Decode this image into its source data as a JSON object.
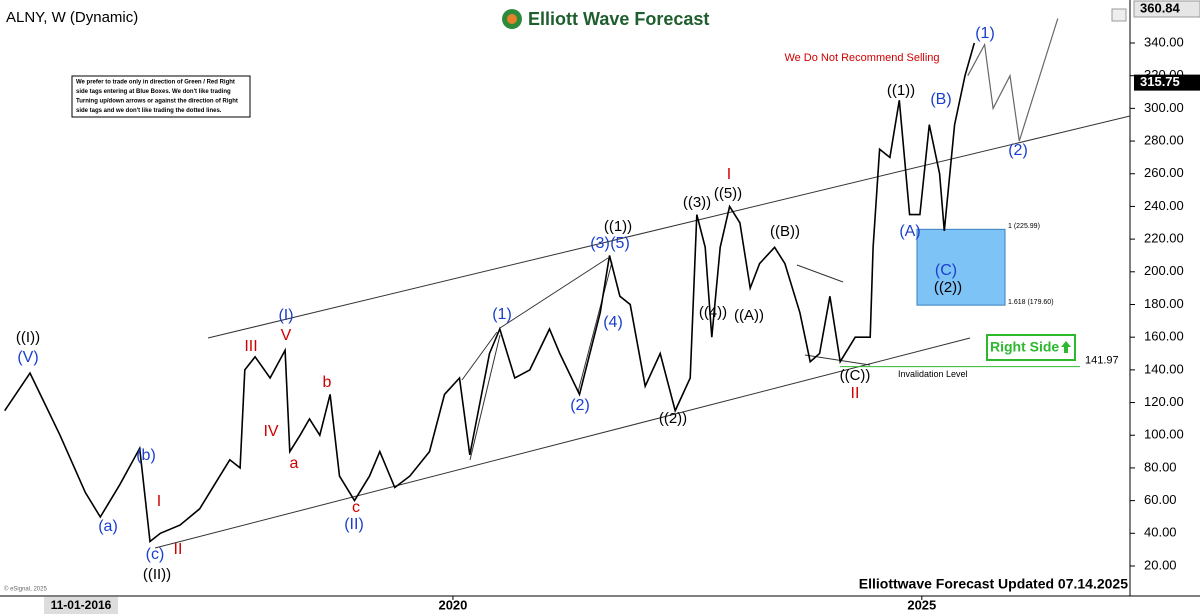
{
  "chart_data": {
    "type": "line",
    "title": "ALNY, W (Dynamic)",
    "logo_text": "Elliott Wave Forecast",
    "warning": "We Do Not Recommend Selling",
    "notice": [
      "We prefer to trade only in direction of Green / Red Right",
      "side tags entering at Blue Boxes. We don't like trading",
      "Turning up/down arrows or against the direction of Right",
      "side tags and we don't like trading the dotted lines."
    ],
    "footer": "Elliottwave Forecast Updated 07.14.2025",
    "copyright": "© eSignal, 2025",
    "x_cursor_label": "11-01-2016",
    "xlim": [
      2015.17,
      2027.22
    ],
    "xticks": [
      2020,
      2025
    ],
    "ylim": [
      1.64,
      366.3
    ],
    "yticks": [
      {
        "value": 20,
        "label": "20.00"
      },
      {
        "value": 40,
        "label": "40.00"
      },
      {
        "value": 60,
        "label": "60.00"
      },
      {
        "value": 80,
        "label": "80.00"
      },
      {
        "value": 100,
        "label": "100.00"
      },
      {
        "value": 120,
        "label": "120.00"
      },
      {
        "value": 140,
        "label": "140.00"
      },
      {
        "value": 160,
        "label": "160.00"
      },
      {
        "value": 180,
        "label": "180.00"
      },
      {
        "value": 200,
        "label": "200.00"
      },
      {
        "value": 220,
        "label": "220.00"
      },
      {
        "value": 240,
        "label": "240.00"
      },
      {
        "value": 260,
        "label": "260.00"
      },
      {
        "value": 280,
        "label": "280.00"
      },
      {
        "value": 300,
        "label": "300.00"
      },
      {
        "value": 320,
        "label": "320.00"
      },
      {
        "value": 340,
        "label": "340.00"
      }
    ],
    "high_price": 360.84,
    "last_price": 315.75,
    "series": [
      {
        "name": "ALNY",
        "color": "#000000",
        "x": [
          2015.22,
          2015.49,
          2015.6,
          2015.81,
          2016.08,
          2016.24,
          2016.45,
          2016.66,
          2016.77,
          2016.88,
          2017.09,
          2017.3,
          2017.46,
          2017.62,
          2017.73,
          2017.78,
          2017.89,
          2018.05,
          2018.21,
          2018.26,
          2018.37,
          2018.47,
          2018.58,
          2018.69,
          2018.79,
          2018.95,
          2019.11,
          2019.22,
          2019.38,
          2019.54,
          2019.75,
          2019.91,
          2020.07,
          2020.18,
          2020.39,
          2020.5,
          2020.66,
          2020.82,
          2021.03,
          2021.14,
          2021.35,
          2021.57,
          2021.67,
          2021.78,
          2021.89,
          2022.05,
          2022.21,
          2022.37,
          2022.53,
          2022.6,
          2022.69,
          2022.76,
          2022.85,
          2022.95,
          2023.06,
          2023.17,
          2023.27,
          2023.43,
          2023.54,
          2023.7,
          2023.81,
          2023.91,
          2024.02,
          2024.13,
          2024.29,
          2024.45,
          2024.48,
          2024.55,
          2024.66,
          2024.76,
          2024.87,
          2024.98,
          2025.08,
          2025.19,
          2025.24,
          2025.35,
          2025.46,
          2025.56
        ],
        "values": [
          115,
          138,
          125,
          100,
          65,
          50,
          70,
          92,
          35,
          40,
          45,
          55,
          70,
          85,
          80,
          140,
          148,
          135,
          152,
          90,
          100,
          110,
          100,
          125,
          75,
          60,
          75,
          90,
          68,
          75,
          90,
          125,
          135,
          88,
          150,
          165,
          135,
          140,
          165,
          150,
          125,
          175,
          210,
          185,
          180,
          130,
          150,
          115,
          135,
          235,
          215,
          160,
          215,
          240,
          230,
          190,
          205,
          215,
          205,
          175,
          145,
          150,
          185,
          145,
          160,
          160,
          215,
          275,
          270,
          305,
          235,
          235,
          290,
          260,
          225,
          290,
          320,
          340
        ]
      },
      {
        "name": "Projection",
        "color": "#666666",
        "x": [
          2025.49,
          2025.67,
          2025.76,
          2025.94,
          2026.04,
          2026.45
        ],
        "values": [
          320,
          339,
          300,
          320,
          280,
          355
        ]
      }
    ],
    "fib_box": {
      "top": 225.99,
      "bottom": 179.6,
      "top_label": "1 (225.99)",
      "bottom_label": "1.618 (179.60)",
      "color": "#7ec3f5"
    },
    "invalidation": {
      "value": 141.97,
      "label": "Invalidation Level",
      "color": "#2db82d"
    },
    "right_side_label": "Right Side",
    "annotations": [
      {
        "text": "((I))",
        "color": "#000000"
      },
      {
        "text": "(V)",
        "color": "#1a3fcf"
      },
      {
        "text": "(a)",
        "color": "#1a3fcf"
      },
      {
        "text": "(b)",
        "color": "#1a3fcf"
      },
      {
        "text": "I",
        "color": "#d00000"
      },
      {
        "text": "(c)",
        "color": "#1a3fcf"
      },
      {
        "text": "II",
        "color": "#d00000"
      },
      {
        "text": "((II))",
        "color": "#000000"
      },
      {
        "text": "III",
        "color": "#d00000"
      },
      {
        "text": "(I)",
        "color": "#1a3fcf"
      },
      {
        "text": "V",
        "color": "#d00000"
      },
      {
        "text": "IV",
        "color": "#d00000"
      },
      {
        "text": "a",
        "color": "#d00000"
      },
      {
        "text": "b",
        "color": "#d00000"
      },
      {
        "text": "c",
        "color": "#d00000"
      },
      {
        "text": "(II)",
        "color": "#1a3fcf"
      },
      {
        "text": "(1)",
        "color": "#1a3fcf"
      },
      {
        "text": "(2)",
        "color": "#1a3fcf"
      },
      {
        "text": "(3)",
        "color": "#1a3fcf"
      },
      {
        "text": "(5)",
        "color": "#1a3fcf"
      },
      {
        "text": "((1))",
        "color": "#000000"
      },
      {
        "text": "(4)",
        "color": "#1a3fcf"
      },
      {
        "text": "((2))",
        "color": "#000000"
      },
      {
        "text": "((3))",
        "color": "#000000"
      },
      {
        "text": "((5))",
        "color": "#000000"
      },
      {
        "text": "I",
        "color": "#d00000"
      },
      {
        "text": "((4))",
        "color": "#000000"
      },
      {
        "text": "((A))",
        "color": "#000000"
      },
      {
        "text": "((B))",
        "color": "#000000"
      },
      {
        "text": "((C))",
        "color": "#000000"
      },
      {
        "text": "II",
        "color": "#d00000"
      },
      {
        "text": "((1))",
        "color": "#000000"
      },
      {
        "text": "(A)",
        "color": "#1a3fcf"
      },
      {
        "text": "(B)",
        "color": "#1a3fcf"
      },
      {
        "text": "(C)",
        "color": "#1a3fcf"
      },
      {
        "text": "((2))",
        "color": "#000000"
      },
      {
        "text": "(1)",
        "color": "#1a3fcf"
      },
      {
        "text": "(2)",
        "color": "#1a3fcf"
      }
    ]
  }
}
